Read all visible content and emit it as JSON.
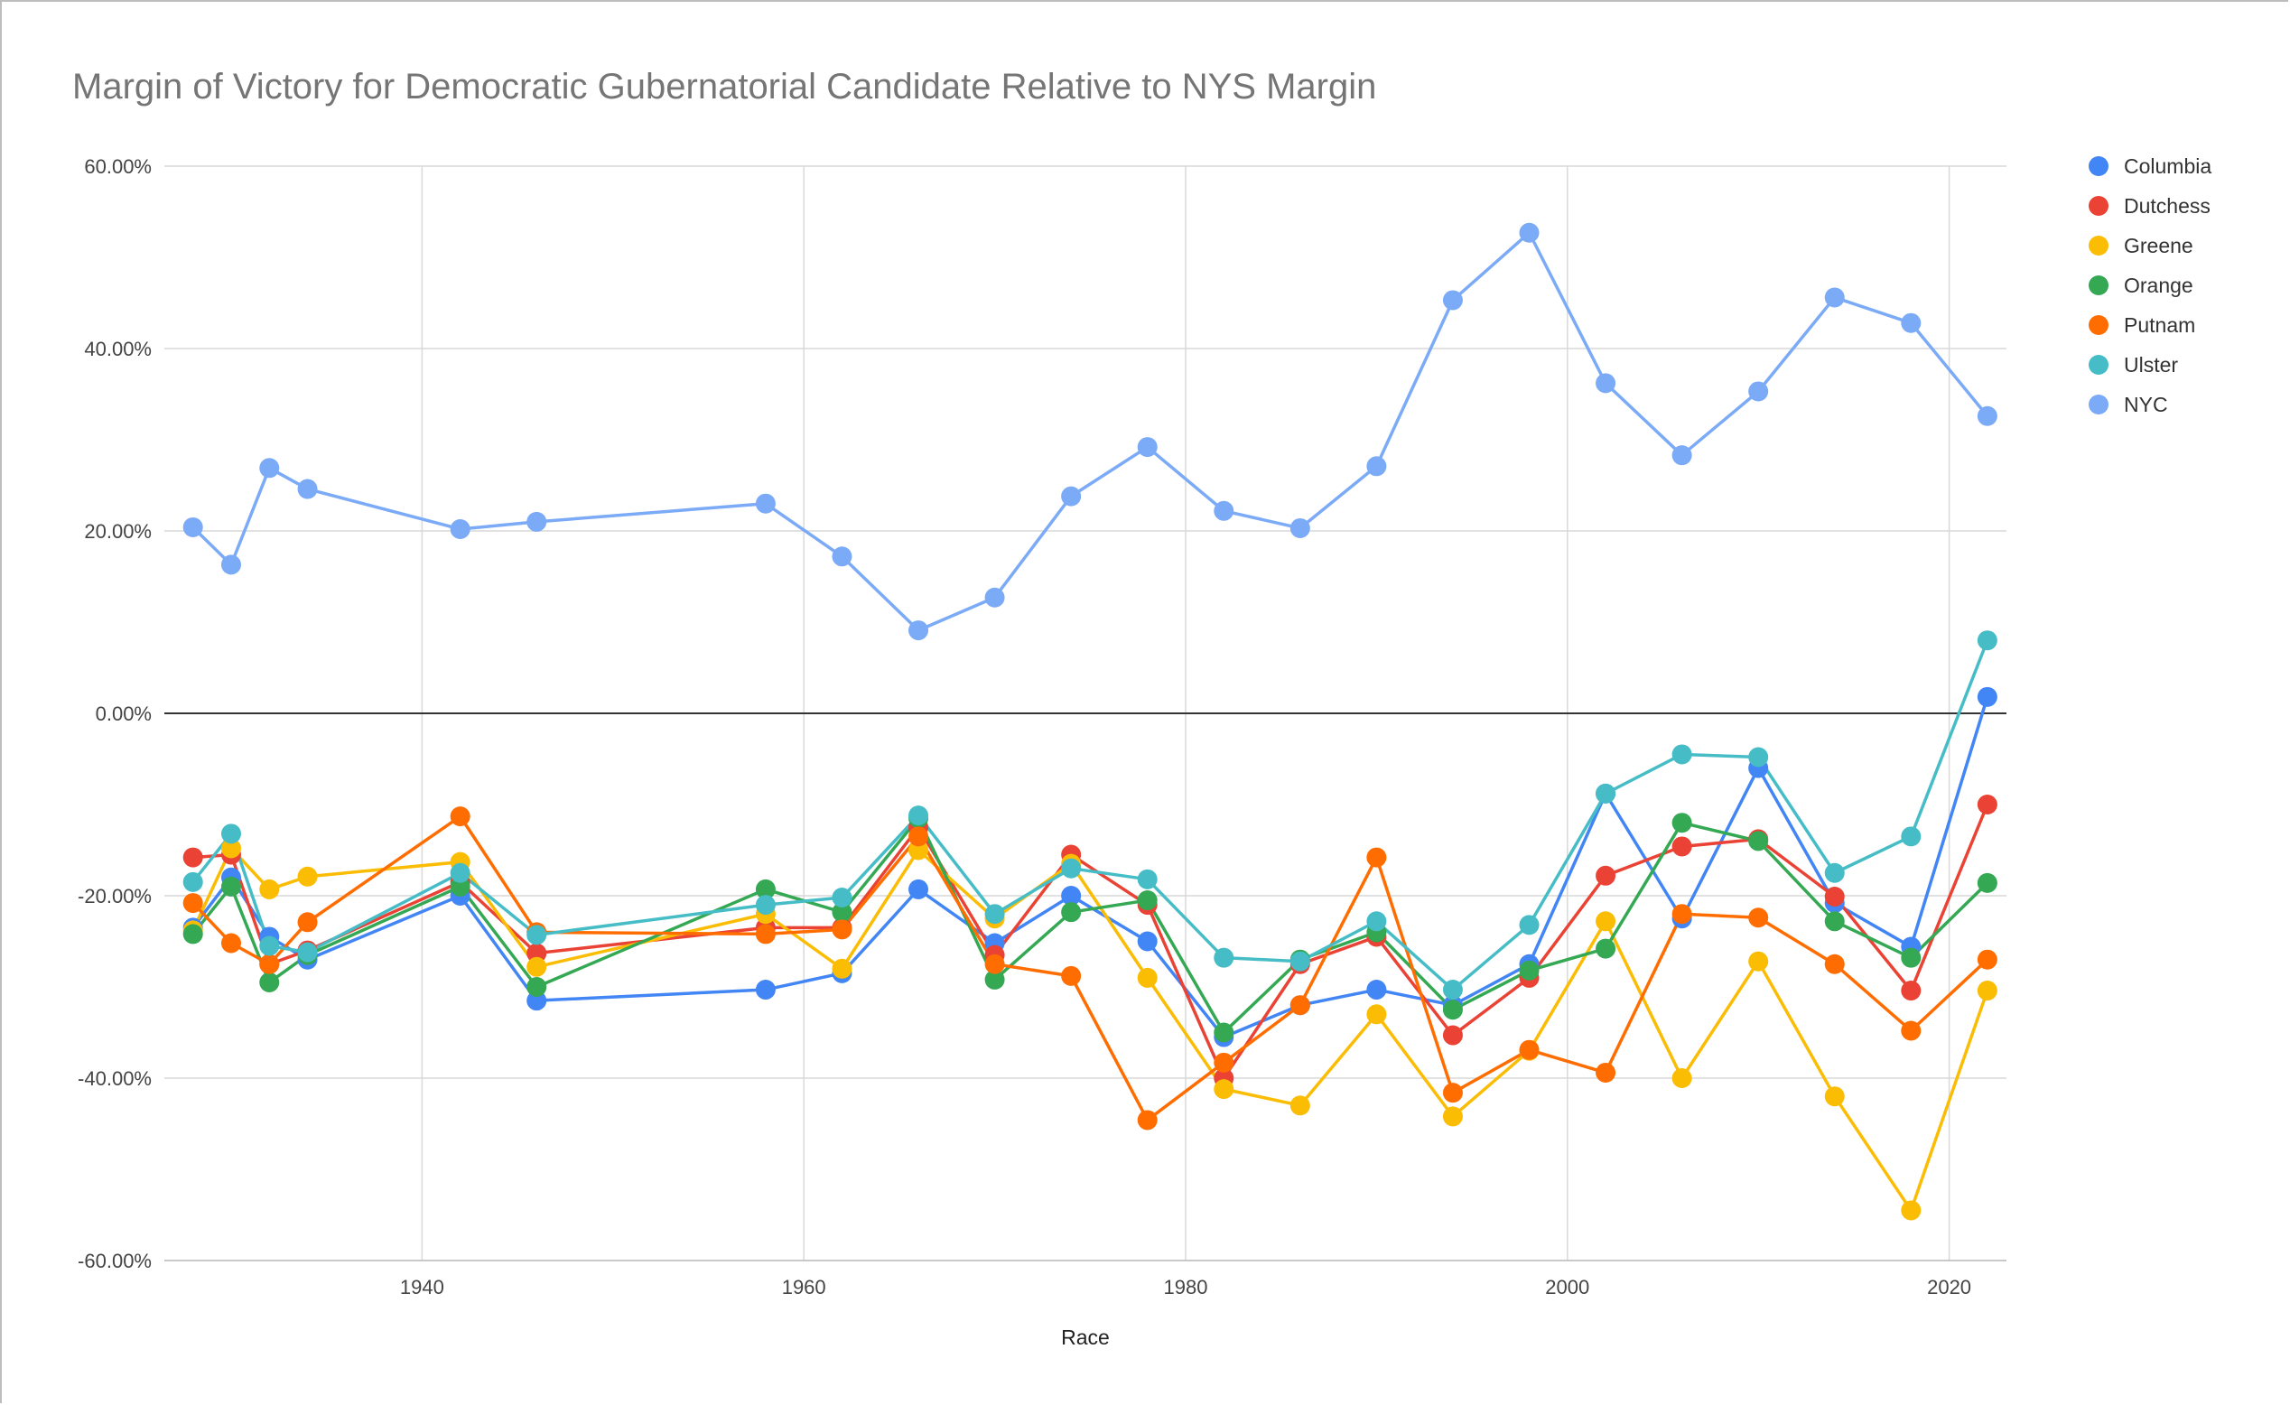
{
  "chart_data": {
    "type": "line",
    "title": "Margin of Victory for Democratic Gubernatorial Candidate Relative to NYS Margin",
    "xlabel": "Race",
    "ylabel": "",
    "xlim": [
      1926.5,
      2023
    ],
    "ylim": [
      -60,
      60
    ],
    "x_ticks": [
      1940,
      1960,
      1980,
      2000,
      2020
    ],
    "y_ticks": [
      -60,
      -40,
      -20,
      0,
      20,
      40,
      60
    ],
    "y_tick_labels": [
      "-60.00%",
      "-40.00%",
      "-20.00%",
      "0.00%",
      "20.00%",
      "40.00%",
      "60.00%"
    ],
    "grid": true,
    "legend_position": "right",
    "x": [
      1928,
      1930,
      1932,
      1934,
      1942,
      1946,
      1958,
      1962,
      1966,
      1970,
      1974,
      1978,
      1982,
      1986,
      1990,
      1994,
      1998,
      2002,
      2006,
      2010,
      2014,
      2018,
      2022
    ],
    "series": [
      {
        "name": "Columbia",
        "color": "#4285f4",
        "values": [
          -23.5,
          -18.0,
          -24.5,
          -27.0,
          -20.0,
          -31.5,
          -30.3,
          -28.5,
          -19.3,
          -25.2,
          -20.0,
          -25.0,
          -35.5,
          -32.0,
          -30.3,
          -32.0,
          -27.5,
          -8.8,
          -22.5,
          -6.0,
          -20.8,
          -25.6,
          1.8
        ]
      },
      {
        "name": "Dutchess",
        "color": "#ea4335",
        "values": [
          -15.8,
          -15.5,
          -27.5,
          -26.0,
          -18.5,
          -26.3,
          -23.5,
          -23.5,
          -12.5,
          -26.5,
          -15.5,
          -21.0,
          -40.0,
          -27.5,
          -24.5,
          -35.3,
          -29.0,
          -17.8,
          -14.6,
          -13.8,
          -20.1,
          -30.4,
          -10.0
        ]
      },
      {
        "name": "Greene",
        "color": "#fbbc04",
        "values": [
          -23.8,
          -14.8,
          -19.3,
          -17.9,
          -16.3,
          -27.8,
          -22.0,
          -28.0,
          -15.0,
          -22.5,
          -16.5,
          -29.0,
          -41.2,
          -43.0,
          -33.0,
          -44.2,
          -37.0,
          -22.8,
          -40.0,
          -27.2,
          -42.0,
          -54.5,
          -30.4
        ]
      },
      {
        "name": "Orange",
        "color": "#34a853",
        "values": [
          -24.2,
          -19.0,
          -29.5,
          -26.5,
          -19.0,
          -30.0,
          -19.3,
          -21.8,
          -11.5,
          -29.2,
          -21.8,
          -20.5,
          -35.0,
          -27.0,
          -24.0,
          -32.5,
          -28.2,
          -25.8,
          -12.0,
          -14.0,
          -22.8,
          -26.8,
          -18.6
        ]
      },
      {
        "name": "Putnam",
        "color": "#ff6d01",
        "values": [
          -20.8,
          -25.2,
          -27.5,
          -22.9,
          -11.3,
          -24.0,
          -24.2,
          -23.7,
          -13.5,
          -27.5,
          -28.8,
          -44.6,
          -38.3,
          -32.0,
          -15.8,
          -41.6,
          -36.9,
          -39.4,
          -22.0,
          -22.4,
          -27.5,
          -34.8,
          -27.0
        ]
      },
      {
        "name": "Ulster",
        "color": "#46bdc6",
        "values": [
          -18.5,
          -13.2,
          -25.5,
          -26.2,
          -17.5,
          -24.3,
          -21.0,
          -20.2,
          -11.2,
          -22.0,
          -17.0,
          -18.2,
          -26.8,
          -27.2,
          -22.8,
          -30.3,
          -23.2,
          -8.8,
          -4.5,
          -4.8,
          -17.5,
          -13.5,
          8.0
        ]
      },
      {
        "name": "NYC",
        "color": "#7baaf7",
        "values": [
          20.4,
          16.3,
          26.9,
          24.6,
          20.2,
          21.0,
          23.0,
          17.2,
          9.1,
          12.7,
          23.8,
          29.2,
          22.2,
          20.3,
          27.1,
          45.3,
          52.7,
          36.2,
          28.3,
          35.3,
          45.6,
          42.8,
          32.6
        ]
      }
    ]
  }
}
